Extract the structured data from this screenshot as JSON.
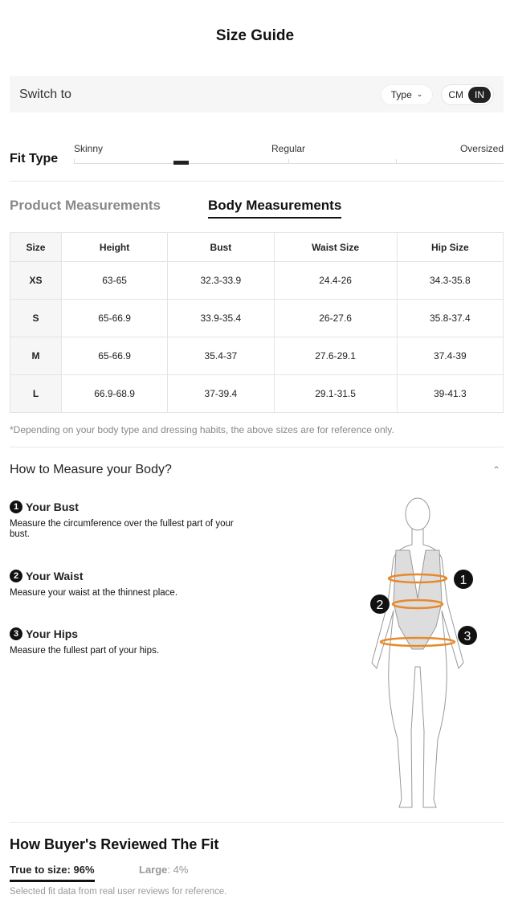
{
  "title": "Size Guide",
  "switch": {
    "label": "Switch to",
    "type_label": "Type",
    "units": [
      "CM",
      "IN"
    ],
    "selected_unit": "IN"
  },
  "fit": {
    "label": "Fit Type",
    "scale": [
      "Skinny",
      "Regular",
      "Oversized"
    ],
    "level_percent": 25
  },
  "tabs": [
    "Product Measurements",
    "Body Measurements"
  ],
  "active_tab": "Body Measurements",
  "table": {
    "headers": [
      "Size",
      "Height",
      "Bust",
      "Waist Size",
      "Hip Size"
    ],
    "rows": [
      [
        "XS",
        "63-65",
        "32.3-33.9",
        "24.4-26",
        "34.3-35.8"
      ],
      [
        "S",
        "65-66.9",
        "33.9-35.4",
        "26-27.6",
        "35.8-37.4"
      ],
      [
        "M",
        "65-66.9",
        "35.4-37",
        "27.6-29.1",
        "37.4-39"
      ],
      [
        "L",
        "66.9-68.9",
        "37-39.4",
        "29.1-31.5",
        "39-41.3"
      ]
    ]
  },
  "note": "*Depending on your body type and dressing habits, the above sizes are for reference only.",
  "howto": {
    "title": "How to Measure your Body?",
    "steps": [
      {
        "num": "1",
        "title": "Your Bust",
        "text": "Measure the circumference over the fullest part of your bust."
      },
      {
        "num": "2",
        "title": "Your Waist",
        "text": "Measure your waist at the thinnest place."
      },
      {
        "num": "3",
        "title": "Your Hips",
        "text": "Measure the fullest part of your hips."
      }
    ]
  },
  "reviews": {
    "title": "How Buyer's Reviewed The Fit",
    "true_label": "True to size:",
    "true_value": "96%",
    "large_label": "Large",
    "large_value": ": 4%",
    "note": "Selected fit data from real user reviews for reference."
  },
  "colors": {
    "accent": "#222222",
    "measure_line": "#e8892b"
  }
}
